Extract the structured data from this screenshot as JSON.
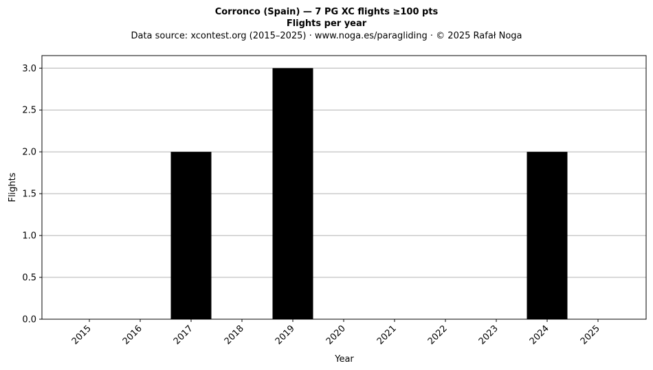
{
  "chart_data": {
    "type": "bar",
    "title": "Corronco (Spain)  —  7 PG XC flights ≥100 pts",
    "subtitle": "Flights per year",
    "source_note": "Data source: xcontest.org (2015–2025)  ·  www.noga.es/paragliding  ·  © 2025 Rafał Noga",
    "xlabel": "Year",
    "ylabel": "Flights",
    "categories": [
      "2015",
      "2016",
      "2017",
      "2018",
      "2019",
      "2020",
      "2021",
      "2022",
      "2023",
      "2024",
      "2025"
    ],
    "values": [
      0,
      0,
      2,
      0,
      3,
      0,
      0,
      0,
      0,
      2,
      0
    ],
    "ylim": [
      0,
      3.15
    ],
    "yticks": [
      "0.0",
      "0.5",
      "1.0",
      "1.5",
      "2.0",
      "2.5",
      "3.0"
    ],
    "ytick_values": [
      0,
      0.5,
      1.0,
      1.5,
      2.0,
      2.5,
      3.0
    ],
    "grid": "horizontal",
    "bar_color": "#000000",
    "grid_color": "#b0b0b0"
  }
}
